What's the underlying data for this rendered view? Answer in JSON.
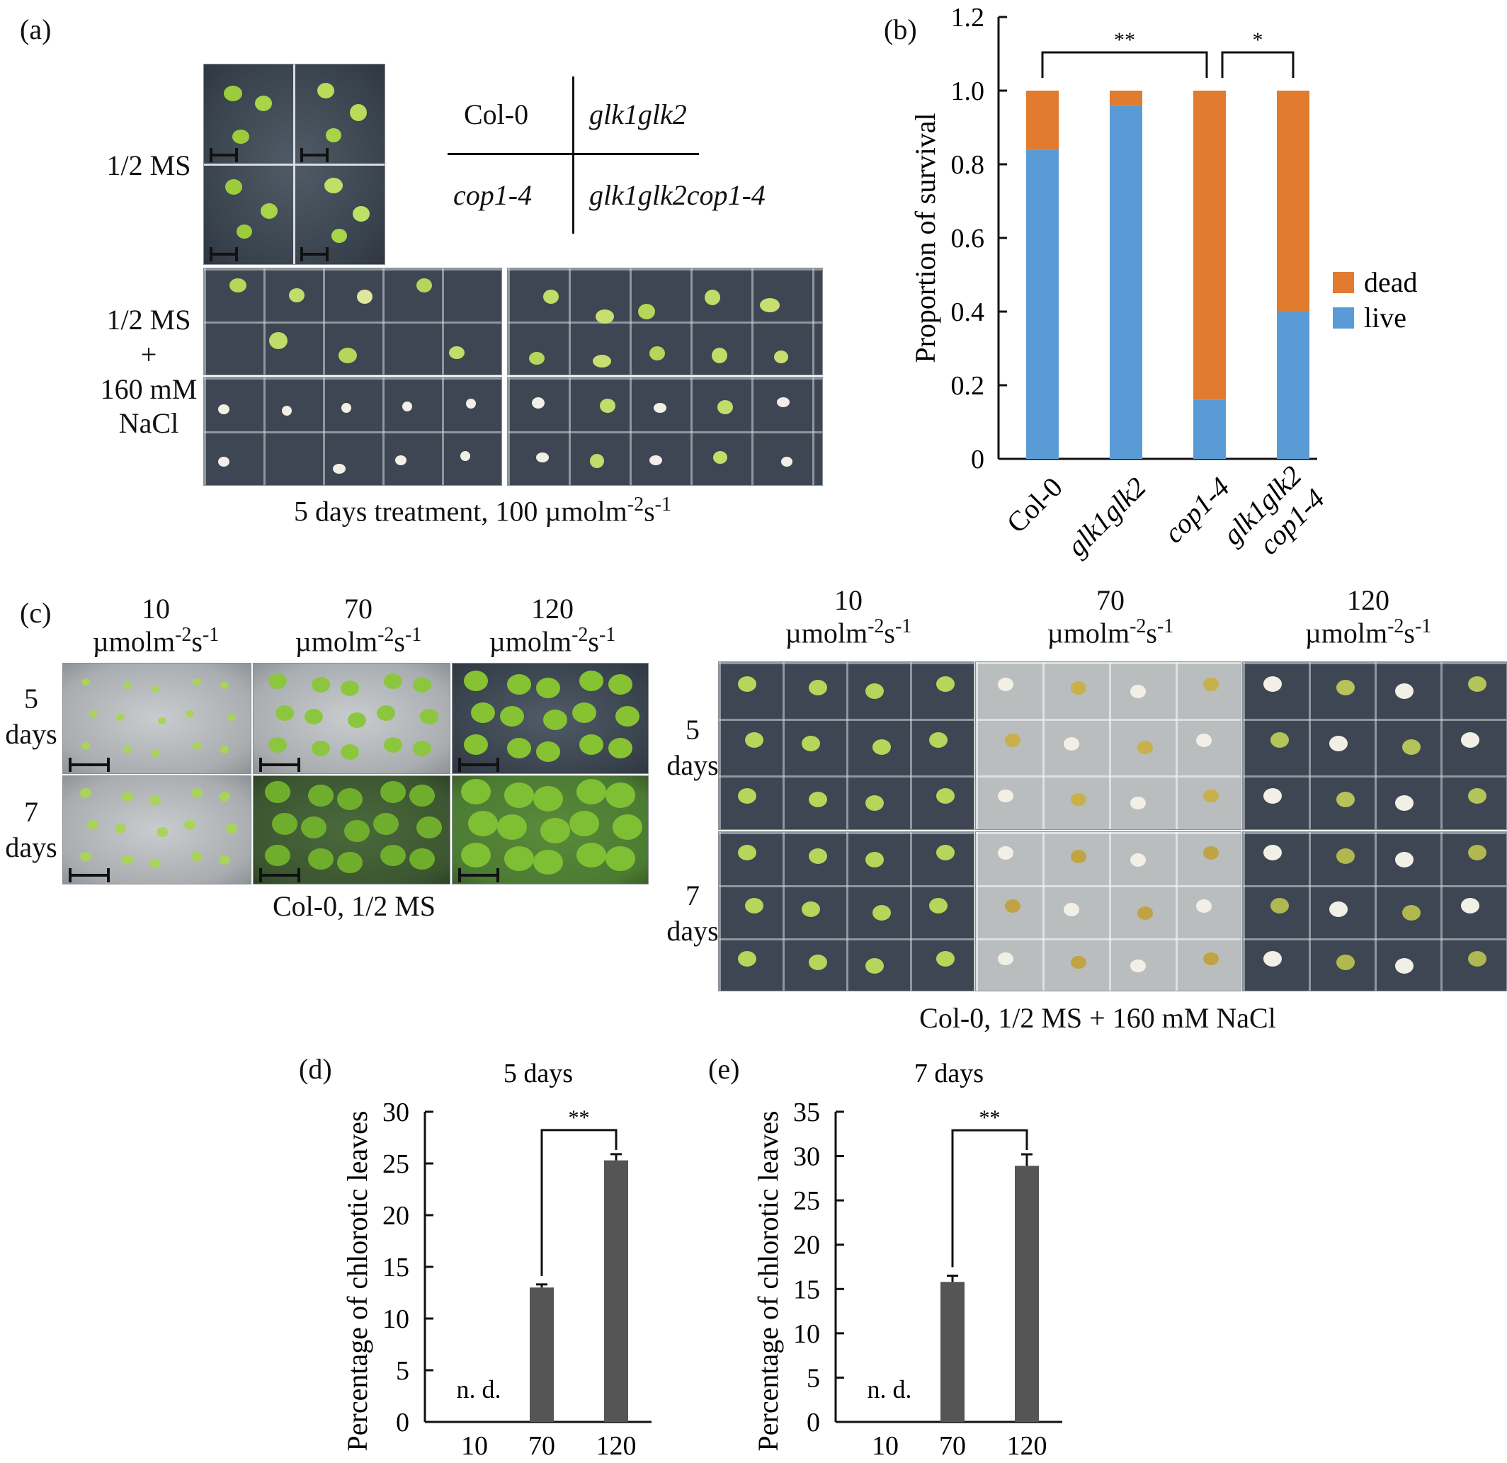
{
  "panels": {
    "a": {
      "label": "(a)",
      "row_label_ms": "1/2 MS",
      "row_label_nacl": [
        "1/2 MS",
        "+",
        "160 mM",
        "NaCl"
      ],
      "genotype_key": {
        "top_left": "Col-0",
        "top_right": "glk1glk2",
        "bottom_left": "cop1-4",
        "bottom_right": "glk1glk2cop1-4"
      },
      "caption": "5 days treatment, 100 µmolm",
      "caption_sup1": "-2",
      "caption_mid": "s",
      "caption_sup2": "-1"
    },
    "b": {
      "label": "(b)",
      "significance": [
        "**",
        "*"
      ]
    },
    "c": {
      "label": "(c)",
      "light_values": [
        "10",
        "70",
        "120"
      ],
      "light_unit": "µmolm",
      "light_unit_sup1": "-2",
      "light_unit_mid": "s",
      "light_unit_sup2": "-1",
      "day_number_5": "5",
      "day_number_7": "7",
      "days_word": "days",
      "caption_left": "Col-0, 1/2 MS",
      "caption_right": "Col-0, 1/2 MS + 160 mM NaCl"
    },
    "d": {
      "label": "(d)",
      "nd": "n. d.",
      "significance": "**"
    },
    "e": {
      "label": "(e)",
      "nd": "n. d.",
      "significance": "**"
    }
  },
  "colors": {
    "dead": "#e07b30",
    "live": "#5b9bd5",
    "bar": "#555555",
    "seedling_green": "#9ccc3c",
    "seedling_white": "#f2efe6"
  },
  "chart_data": [
    {
      "id": "b",
      "type": "bar",
      "stacked": true,
      "categories": [
        "Col-0",
        "glk1glk2",
        "cop1-4",
        "glk1glk2\ncop1-4"
      ],
      "series": [
        {
          "name": "live",
          "values": [
            0.84,
            0.96,
            0.16,
            0.4
          ]
        },
        {
          "name": "dead",
          "values": [
            0.16,
            0.04,
            0.84,
            0.6
          ]
        }
      ],
      "ylabel": "Proportion of survival",
      "ylim": [
        0,
        1.2
      ],
      "yticks": [
        "0",
        "0.2",
        "0.4",
        "0.6",
        "0.8",
        "1.0",
        "1.2"
      ],
      "legend": "right",
      "brackets": [
        {
          "from": 0,
          "to": 2,
          "text": "**"
        },
        {
          "from": 2,
          "to": 3,
          "text": "*"
        }
      ]
    },
    {
      "id": "d",
      "type": "bar",
      "title": "5 days",
      "categories": [
        "10",
        "70",
        "120"
      ],
      "values": [
        null,
        13,
        25.3
      ],
      "errors": [
        null,
        0.3,
        0.6
      ],
      "ylabel": "Percentage of chlorotic leaves",
      "ylim": [
        0,
        30
      ],
      "yticks": [
        "0",
        "5",
        "10",
        "15",
        "20",
        "25",
        "30"
      ],
      "brackets": [
        {
          "from": 1,
          "to": 2,
          "text": "**"
        }
      ]
    },
    {
      "id": "e",
      "type": "bar",
      "title": "7 days",
      "categories": [
        "10",
        "70",
        "120"
      ],
      "values": [
        null,
        15.8,
        28.9
      ],
      "errors": [
        null,
        0.7,
        1.3
      ],
      "ylabel": "Percentage of chlorotic leaves",
      "ylim": [
        0,
        35
      ],
      "yticks": [
        "0",
        "5",
        "10",
        "15",
        "20",
        "25",
        "30",
        "35"
      ],
      "brackets": [
        {
          "from": 1,
          "to": 2,
          "text": "**"
        }
      ]
    }
  ]
}
